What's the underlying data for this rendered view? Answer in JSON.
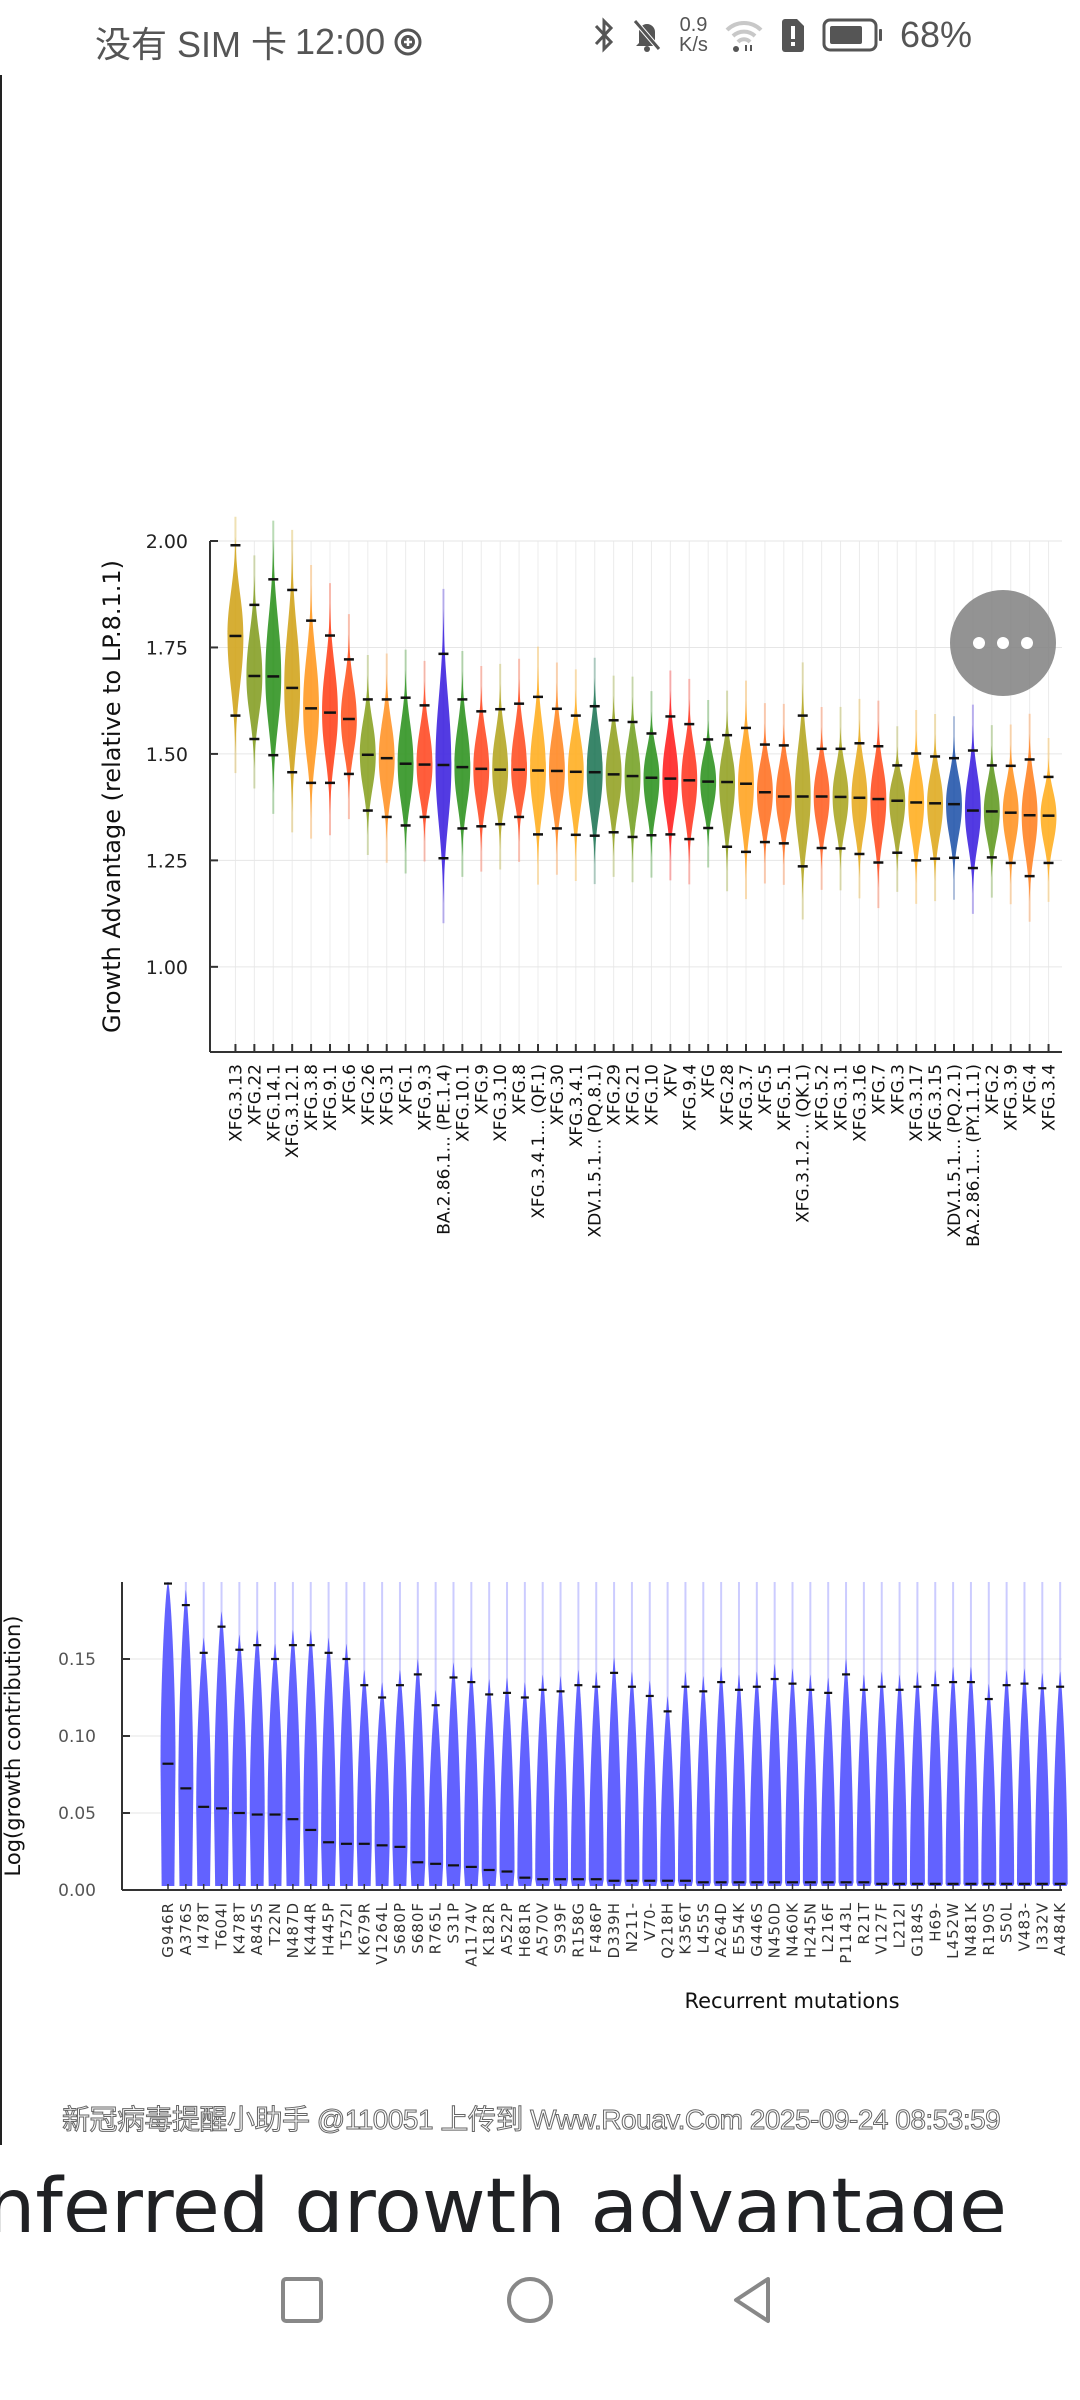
{
  "status_bar": {
    "carrier": "没有 SIM 卡",
    "time": "12:00",
    "net_speed_value": "0.9",
    "net_speed_unit": "K/s",
    "battery_percent": "68%",
    "icons": [
      "add-circle-icon",
      "bluetooth-icon",
      "bell-muted-icon",
      "wifi-icon",
      "sim-alert-icon",
      "battery-icon"
    ]
  },
  "fab": {
    "icon": "more-horizontal-icon"
  },
  "watermark": "新冠病毒提醒小助手 @110051 上传到 Www.Rouav.Com 2025-09-24 08:53:59",
  "heading": "nferred growth advantage",
  "nav": {
    "icons": [
      "recents-square-icon",
      "home-circle-icon",
      "back-triangle-icon"
    ]
  },
  "chart_data": [
    {
      "type": "violin",
      "title": "",
      "xlabel": "",
      "ylabel": "Growth Advantage (relative to LP.8.1.1)",
      "ylim": [
        0.8,
        2.0
      ],
      "yticks": [
        "1.00",
        "1.25",
        "1.50",
        "1.75",
        "2.00"
      ],
      "ytick_values": [
        1.0,
        1.25,
        1.5,
        1.75,
        2.0
      ],
      "grid": true,
      "categories": [
        "XFG.3.13",
        "XFG.22",
        "XFG.14.1",
        "XFG.3.12.1",
        "XFG.3.8",
        "XFG.9.1",
        "XFG.6",
        "XFG.26",
        "XFG.31",
        "XFG.1",
        "XFG.9.3",
        "BA.2.86.1... (PE.1.4)",
        "XFG.10.1",
        "XFG.9",
        "XFG.3.10",
        "XFG.8",
        "XFG.3.4.1... (QF.1)",
        "XFG.30",
        "XFG.3.4.1",
        "XDV.1.5.1... (PQ.8.1)",
        "XFG.29",
        "XFG.21",
        "XFG.10",
        "XFV",
        "XFG.9.4",
        "XFG",
        "XFG.28",
        "XFG.3.7",
        "XFG.5",
        "XFG.5.1",
        "XFG.3.1.2... (QK.1)",
        "XFG.5.2",
        "XFG.3.1",
        "XFG.3.16",
        "XFG.7",
        "XFG.3",
        "XFG.3.17",
        "XFG.3.15",
        "XDV.1.5.1... (PQ.2.1)",
        "BA.2.86.1... (PY.1.1.1)",
        "XFG.2",
        "XFG.3.9",
        "XFG.4",
        "XFG.3.4"
      ],
      "median": [
        1.777,
        1.683,
        1.682,
        1.655,
        1.607,
        1.597,
        1.582,
        1.498,
        1.49,
        1.477,
        1.475,
        1.474,
        1.469,
        1.465,
        1.463,
        1.463,
        1.461,
        1.46,
        1.458,
        1.457,
        1.452,
        1.448,
        1.444,
        1.442,
        1.438,
        1.435,
        1.434,
        1.43,
        1.41,
        1.4,
        1.4,
        1.4,
        1.399,
        1.397,
        1.394,
        1.39,
        1.386,
        1.384,
        1.382,
        1.367,
        1.365,
        1.362,
        1.356,
        1.355
      ],
      "lower": [
        1.59,
        1.535,
        1.497,
        1.457,
        1.432,
        1.432,
        1.453,
        1.367,
        1.352,
        1.332,
        1.352,
        1.255,
        1.325,
        1.33,
        1.335,
        1.352,
        1.311,
        1.325,
        1.31,
        1.308,
        1.316,
        1.305,
        1.309,
        1.311,
        1.3,
        1.326,
        1.282,
        1.27,
        1.293,
        1.29,
        1.236,
        1.279,
        1.278,
        1.265,
        1.245,
        1.268,
        1.25,
        1.254,
        1.256,
        1.232,
        1.257,
        1.244,
        1.213,
        1.244
      ],
      "upper": [
        1.99,
        1.85,
        1.91,
        1.885,
        1.813,
        1.778,
        1.722,
        1.628,
        1.628,
        1.632,
        1.614,
        1.735,
        1.628,
        1.6,
        1.605,
        1.618,
        1.634,
        1.606,
        1.59,
        1.612,
        1.579,
        1.575,
        1.548,
        1.588,
        1.57,
        1.534,
        1.544,
        1.561,
        1.522,
        1.52,
        1.59,
        1.512,
        1.512,
        1.525,
        1.518,
        1.473,
        1.501,
        1.494,
        1.49,
        1.508,
        1.473,
        1.472,
        1.487,
        1.446
      ],
      "colors": [
        "#d4aa2a",
        "#8ca432",
        "#3c9a2e",
        "#d4aa2a",
        "#ff9f2e",
        "#ff4f2a",
        "#ff5f2e",
        "#90a832",
        "#ff9a35",
        "#3c9a2e",
        "#ff5532",
        "#4a30e0",
        "#3c9a2e",
        "#ff5532",
        "#b8ac30",
        "#ff5a32",
        "#ffb32e",
        "#ff8f32",
        "#ffb32e",
        "#2f7f62",
        "#9aa832",
        "#7ea834",
        "#3c9a2e",
        "#ff2e2e",
        "#ff4632",
        "#3c9a2e",
        "#9aa832",
        "#ffa92e",
        "#ff7a30",
        "#ff7a30",
        "#b8ac30",
        "#ff6a32",
        "#b0ac30",
        "#e8b02e",
        "#ff5a2e",
        "#a8a832",
        "#ffb32e",
        "#e0b02e",
        "#3060b0",
        "#4a30e0",
        "#6ca030",
        "#ff9a30",
        "#ff8a30",
        "#ffb32e"
      ]
    },
    {
      "type": "violin",
      "title": "",
      "xlabel": "Recurrent mutations",
      "ylabel": "Log(growth contribution)",
      "ylim": [
        0.0,
        0.2
      ],
      "yticks": [
        "0.00",
        "0.05",
        "0.10",
        "0.15"
      ],
      "ytick_values": [
        0.0,
        0.05,
        0.1,
        0.15
      ],
      "grid": true,
      "color": "#5a5aff",
      "categories": [
        "G946R",
        "A376S",
        "I478T",
        "T604I",
        "K478T",
        "A845S",
        "T22N",
        "N487D",
        "K444R",
        "H445P",
        "T572I",
        "K679R",
        "V1264L",
        "S680P",
        "S680F",
        "R765L",
        "S31P",
        "A1174V",
        "K182R",
        "A522P",
        "H681R",
        "A570V",
        "S939F",
        "R158G",
        "F486P",
        "D339H",
        "N211-",
        "V70-",
        "Q218H",
        "K356T",
        "L455S",
        "A264D",
        "E554K",
        "G446S",
        "N450D",
        "N460K",
        "H245N",
        "L216F",
        "P1143L",
        "R21T",
        "V127F",
        "L212I",
        "G184S",
        "H69-",
        "L452W",
        "N481K",
        "R190S",
        "S50L",
        "V483-",
        "I332V",
        "A484K"
      ],
      "median": [
        0.082,
        0.066,
        0.054,
        0.053,
        0.05,
        0.049,
        0.049,
        0.046,
        0.039,
        0.031,
        0.03,
        0.03,
        0.029,
        0.028,
        0.018,
        0.017,
        0.016,
        0.015,
        0.013,
        0.012,
        0.008,
        0.007,
        0.007,
        0.007,
        0.007,
        0.006,
        0.006,
        0.006,
        0.006,
        0.006,
        0.005,
        0.005,
        0.005,
        0.005,
        0.005,
        0.005,
        0.005,
        0.005,
        0.005,
        0.005,
        0.004,
        0.004,
        0.004,
        0.004,
        0.004,
        0.004,
        0.004,
        0.004,
        0.004,
        0.004,
        0.004
      ],
      "upper": [
        0.199,
        0.185,
        0.154,
        0.171,
        0.156,
        0.159,
        0.15,
        0.159,
        0.159,
        0.154,
        0.15,
        0.133,
        0.125,
        0.133,
        0.14,
        0.12,
        0.138,
        0.135,
        0.127,
        0.128,
        0.125,
        0.13,
        0.129,
        0.133,
        0.132,
        0.141,
        0.132,
        0.126,
        0.116,
        0.132,
        0.129,
        0.135,
        0.13,
        0.132,
        0.137,
        0.134,
        0.13,
        0.128,
        0.14,
        0.13,
        0.132,
        0.13,
        0.132,
        0.133,
        0.135,
        0.135,
        0.124,
        0.133,
        0.134,
        0.131,
        0.132
      ]
    }
  ]
}
